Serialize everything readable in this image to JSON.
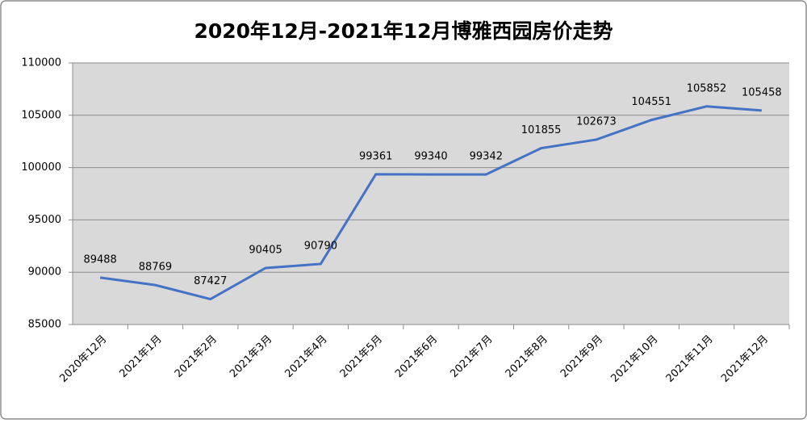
{
  "chart_data": {
    "type": "line",
    "title": "2020年12月-2021年12月博雅西园房价走势",
    "categories": [
      "2020年12月",
      "2021年1月",
      "2021年2月",
      "2021年3月",
      "2021年4月",
      "2021年5月",
      "2021年6月",
      "2021年7月",
      "2021年8月",
      "2021年9月",
      "2021年10月",
      "2021年11月",
      "2021年12月"
    ],
    "series": [
      {
        "name": "房价",
        "color": "#4472c4",
        "values": [
          89488,
          88769,
          87427,
          90405,
          90790,
          99361,
          99340,
          99342,
          101855,
          102673,
          104551,
          105852,
          105458
        ]
      }
    ],
    "ylim": [
      85000,
      110000
    ],
    "yticks": [
      85000,
      90000,
      95000,
      100000,
      105000,
      110000
    ],
    "grid": true
  }
}
